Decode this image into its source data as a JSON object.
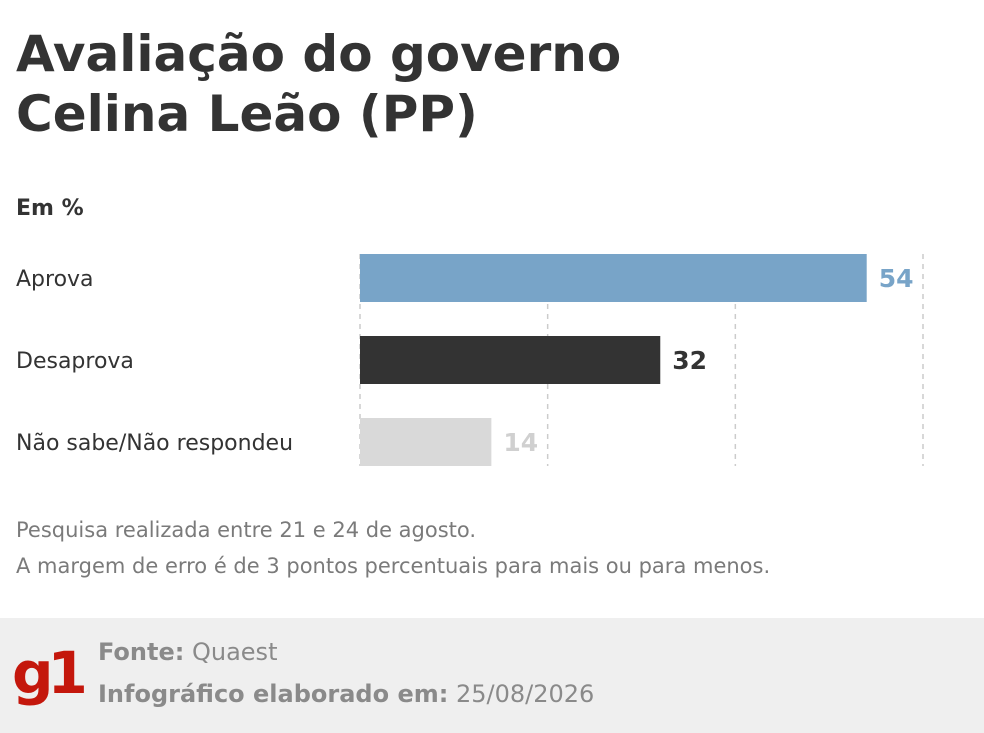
{
  "title_lines": [
    "Avaliação do governo",
    "Celina Leão (PP)"
  ],
  "unit_label": "Em %",
  "chart_data": {
    "type": "bar",
    "orientation": "horizontal",
    "categories": [
      "Aprova",
      "Desaprova",
      "Não sabe/Não respondeu"
    ],
    "values": [
      54,
      32,
      14
    ],
    "colors": [
      "#78a4c8",
      "#333333",
      "#d9d9d9"
    ],
    "label_colors": [
      "#78a4c8",
      "#333333",
      "#d0d0d0"
    ],
    "xlim": [
      0,
      60
    ],
    "grid": true
  },
  "notes": [
    "Pesquisa realizada entre 21 e 24 de agosto.",
    "A margem de erro é de 3 pontos percentuais para mais ou para menos."
  ],
  "footer": {
    "logo": "g1",
    "source_label": "Fonte:",
    "source_value": "Quaest",
    "date_label": "Infográfico elaborado em:",
    "date_value": "25/08/2026"
  }
}
